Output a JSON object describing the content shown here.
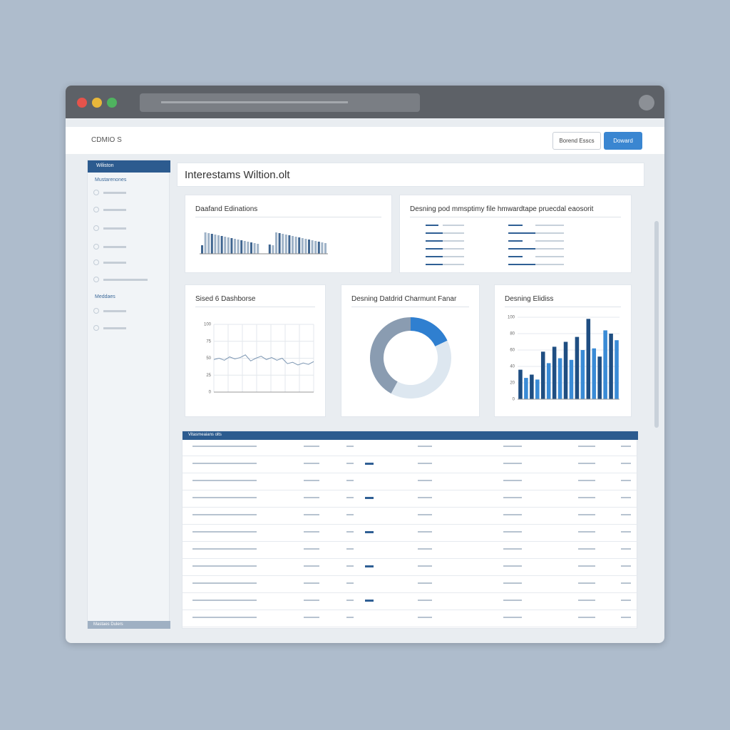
{
  "header": {
    "logo": "CDMIO S",
    "buttons": [
      "Borend Esscs",
      "Doward"
    ]
  },
  "sidebar": {
    "title": "Wiliston",
    "sections": [
      "Mustarenones",
      "Meddaes"
    ],
    "footer": "Mastaes Dulers"
  },
  "page_title": "Interestams Wiltion.olt",
  "panels": [
    {
      "title": "Daafand Edinations"
    },
    {
      "title": "Desning pod mmsptimy file hmwardtape pruecdal eaosorit"
    }
  ],
  "table": {
    "title": "Vitasmeaians olts"
  },
  "chart_data": [
    {
      "type": "line",
      "title": "Sised 6 Dashborse",
      "color": "#7d97b3",
      "x": [
        0,
        1,
        2,
        3,
        4,
        5,
        6,
        7,
        8,
        9,
        10,
        11,
        12,
        13,
        14,
        15,
        16,
        17,
        18,
        19
      ],
      "values": [
        48,
        50,
        47,
        52,
        49,
        51,
        55,
        46,
        50,
        53,
        48,
        51,
        47,
        50,
        42,
        44,
        40,
        43,
        41,
        45
      ],
      "xlim": [
        0,
        19
      ],
      "ylim": [
        0,
        100
      ],
      "yticks": [
        0,
        25,
        50,
        75,
        100
      ],
      "grid": true
    },
    {
      "type": "pie",
      "title": "Desning Datdrid Charmunt Fanar",
      "donut": true,
      "categories": [
        null,
        null,
        null
      ],
      "values": [
        18,
        40,
        42
      ],
      "colors": [
        "#2f7fd0",
        "#dde7f0",
        "#8a9cb1"
      ]
    },
    {
      "type": "bar",
      "title": "Desning Elidiss",
      "categories": [
        null,
        null,
        null,
        null,
        null,
        null,
        null,
        null,
        null,
        null,
        null,
        null,
        null,
        null,
        null,
        null,
        null,
        null
      ],
      "values": [
        36,
        26,
        30,
        24,
        58,
        44,
        64,
        50,
        70,
        48,
        76,
        60,
        98,
        62,
        52,
        84,
        80,
        72
      ],
      "colors": [
        "#1f4e82",
        "#3a8bd6"
      ],
      "ylim": [
        0,
        100
      ],
      "yticks": [
        0,
        20,
        40,
        60,
        80,
        100
      ],
      "grid": true
    }
  ]
}
